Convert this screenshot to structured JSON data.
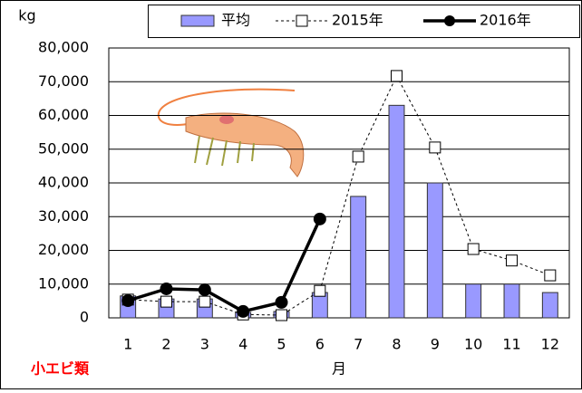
{
  "chart_data": {
    "type": "bar_line",
    "y_label": "kg",
    "x_label": "月",
    "annotation": "小エビ類",
    "categories": [
      "1",
      "2",
      "3",
      "4",
      "5",
      "6",
      "7",
      "8",
      "9",
      "10",
      "11",
      "12"
    ],
    "series": [
      {
        "name": "平均",
        "type": "bar",
        "color": "#9999ff",
        "values": [
          6500,
          5600,
          5600,
          1600,
          1900,
          7500,
          36000,
          63000,
          40000,
          10000,
          10000,
          7500
        ]
      },
      {
        "name": "2015年",
        "type": "line",
        "style": "dashed",
        "marker": "square",
        "color": "#000000",
        "values": [
          5400,
          4800,
          4800,
          1000,
          800,
          8000,
          47800,
          71700,
          50500,
          20400,
          17000,
          12600
        ]
      },
      {
        "name": "2016年",
        "type": "line",
        "style": "solid",
        "marker": "circle",
        "color": "#000000",
        "values": [
          5100,
          8600,
          8300,
          1900,
          4600,
          29300,
          null,
          null,
          null,
          null,
          null,
          null
        ]
      }
    ],
    "ylim": [
      0,
      80000
    ],
    "yticks": [
      0,
      {
        "value": 10000,
        "label": "10,000"
      },
      {
        "value": 20000,
        "label": "20,000"
      },
      {
        "value": 30000,
        "label": "30,000"
      },
      {
        "value": 40000,
        "label": "40,000"
      },
      {
        "value": 50000,
        "label": "50,000"
      },
      {
        "value": 60000,
        "label": "60,000"
      },
      {
        "value": 70000,
        "label": "70,000"
      },
      {
        "value": 80000,
        "label": "80,000"
      }
    ],
    "grid": true,
    "legend": "top"
  }
}
